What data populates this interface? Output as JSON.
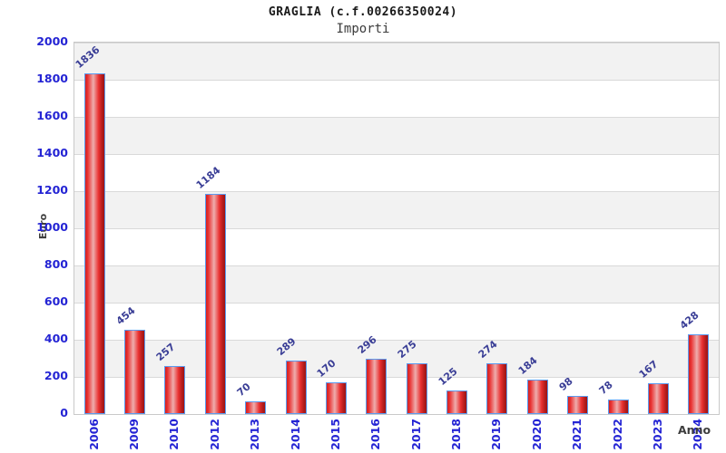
{
  "header": {
    "title": "GRAGLIA (c.f.00266350024)",
    "subtitle": "Importi"
  },
  "chart_data": {
    "type": "bar",
    "title": "GRAGLIA (c.f.00266350024)",
    "subtitle": "Importi",
    "xlabel": "Anno",
    "ylabel": "Euro",
    "categories": [
      "2006",
      "2009",
      "2010",
      "2012",
      "2013",
      "2014",
      "2015",
      "2016",
      "2017",
      "2018",
      "2019",
      "2020",
      "2021",
      "2022",
      "2023",
      "2024"
    ],
    "values": [
      1836,
      454,
      257,
      1184,
      70,
      289,
      170,
      296,
      275,
      125,
      274,
      184,
      98,
      78,
      167,
      428
    ],
    "ylim": [
      0,
      2000
    ],
    "yticks": [
      0,
      200,
      400,
      600,
      800,
      1000,
      1200,
      1400,
      1600,
      1800,
      2000
    ],
    "grid": "alternating-horizontal-bands",
    "legend": "none",
    "bar_value_labels_rotated": true,
    "x_tick_labels_rotated": true,
    "colors": {
      "title_text": "#1a1a1a",
      "axis_tick_text": "#2424d4",
      "value_label_text": "#3a3e96",
      "axis_title_text": "#3d3d3d",
      "bar_red": "#e93030",
      "bar_highlight": "#eeadad",
      "bar_shadow": "#9c1414",
      "bar_border": "#5b9bf0",
      "band_fill": "#f2f2f2",
      "grid_line": "#d9d9d9"
    }
  }
}
